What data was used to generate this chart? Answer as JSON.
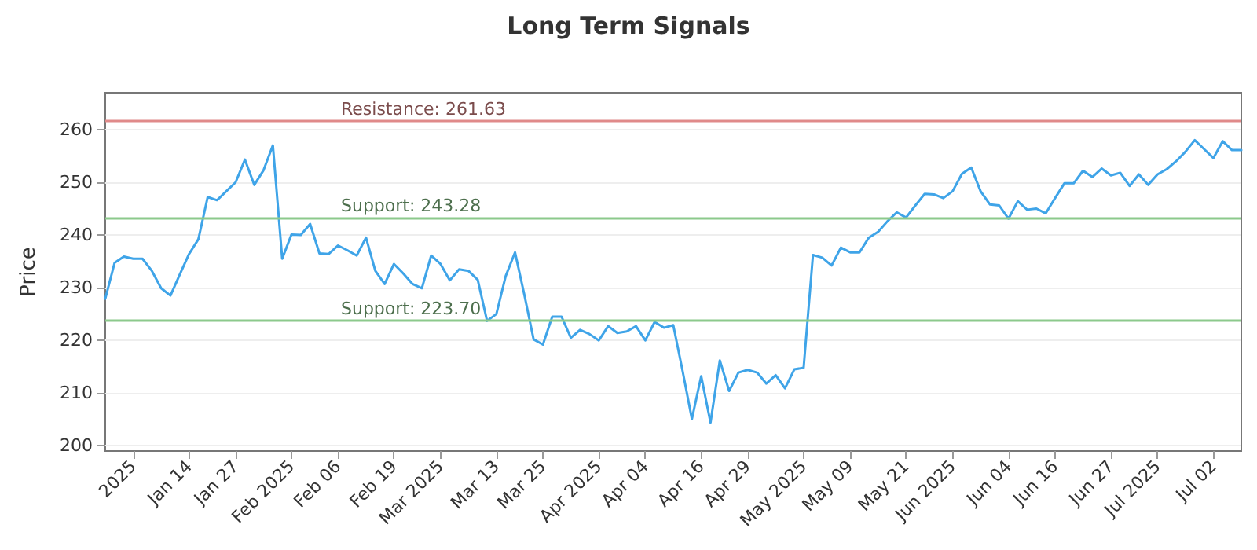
{
  "chart_data": {
    "type": "line",
    "title": "Long Term Signals",
    "ylabel": "Price",
    "categories": [
      null,
      null,
      null,
      "2025",
      null,
      null,
      null,
      null,
      null,
      "Jan 14",
      null,
      null,
      null,
      null,
      "Jan 27",
      null,
      null,
      null,
      null,
      null,
      "Feb 2025",
      null,
      null,
      null,
      null,
      "Feb 06",
      null,
      null,
      null,
      null,
      null,
      "Feb 19",
      null,
      null,
      null,
      null,
      "Mar 2025",
      null,
      null,
      null,
      null,
      null,
      "Mar 13",
      null,
      null,
      null,
      null,
      "Mar 25",
      null,
      null,
      null,
      null,
      null,
      "Apr 2025",
      null,
      null,
      null,
      null,
      "Apr 04",
      null,
      null,
      null,
      null,
      null,
      "Apr 16",
      null,
      null,
      null,
      null,
      "Apr 29",
      null,
      null,
      null,
      null,
      null,
      "May 2025",
      null,
      null,
      null,
      null,
      "May 09",
      null,
      null,
      null,
      null,
      null,
      "May 21",
      null,
      null,
      null,
      null,
      "Jun 2025",
      null,
      null,
      null,
      null,
      null,
      "Jun 04",
      null,
      null,
      null,
      null,
      "Jun 16",
      null,
      null,
      null,
      null,
      null,
      "Jun 27",
      null,
      null,
      null,
      null,
      "Jul 2025",
      null,
      null,
      null,
      null,
      null,
      "Jul 02",
      null,
      null,
      null
    ],
    "series": [
      {
        "color": "#3fa4e8",
        "values": [
          227.9,
          234.7,
          235.9,
          235.5,
          235.5,
          233.2,
          229.9,
          228.5,
          232.5,
          236.4,
          239.2,
          247.2,
          246.6,
          248.3,
          250.0,
          254.3,
          249.5,
          252.3,
          257.0,
          235.5,
          240.1,
          240.0,
          242.1,
          236.5,
          236.4,
          238.0,
          237.1,
          236.1,
          239.5,
          233.2,
          230.7,
          234.5,
          232.7,
          230.7,
          229.9,
          236.1,
          234.5,
          231.4,
          233.5,
          233.2,
          231.5,
          223.7,
          225.0,
          232.2,
          236.7,
          228.7,
          220.2,
          219.2,
          224.5,
          224.5,
          220.5,
          222.0,
          221.2,
          220.0,
          222.7,
          221.4,
          221.7,
          222.7,
          220.0,
          223.5,
          222.4,
          222.9,
          214.2,
          205.1,
          213.2,
          204.4,
          216.2,
          210.4,
          213.9,
          214.4,
          213.9,
          211.8,
          213.4,
          210.9,
          214.5,
          214.8,
          236.2,
          235.7,
          234.2,
          237.6,
          236.7,
          236.7,
          239.5,
          240.6,
          242.6,
          244.3,
          243.3,
          245.6,
          247.8,
          247.7,
          247.0,
          248.3,
          251.6,
          252.8,
          248.3,
          245.8,
          245.6,
          243.1,
          246.4,
          244.8,
          245.0,
          244.1,
          247.0,
          249.8,
          249.8,
          252.2,
          251.0,
          252.6,
          251.3,
          251.8,
          249.3,
          251.5,
          249.5,
          251.5,
          252.5,
          254.0,
          255.8,
          258.0,
          256.3,
          254.6,
          257.8,
          256.1,
          256.1
        ]
      }
    ],
    "ylim": [
      199,
      267
    ],
    "yticks": [
      200,
      210,
      220,
      230,
      240,
      250,
      260
    ],
    "grid": "y",
    "marker": "none",
    "line_style": "solid",
    "ref_lines": [
      {
        "axis": "y",
        "value": 261.63,
        "label": "Resistance: 261.63",
        "color": "#e08a8a"
      },
      {
        "axis": "y",
        "value": 243.28,
        "label": "Support: 243.28",
        "color": "#8cc98c"
      },
      {
        "axis": "y",
        "value": 223.7,
        "label": "Support: 223.70",
        "color": "#8cc98c"
      }
    ]
  }
}
